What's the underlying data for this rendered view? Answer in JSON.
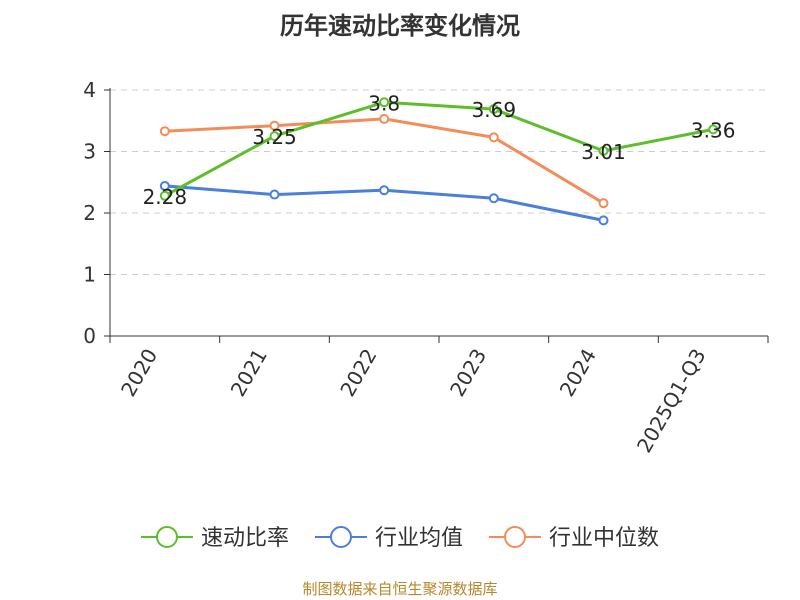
{
  "chart_data": {
    "type": "line",
    "title": "历年速动比率变化情况",
    "categories": [
      "2020",
      "2021",
      "2022",
      "2023",
      "2024",
      "2025Q1-Q3"
    ],
    "ylim": [
      0,
      4
    ],
    "yticks": [
      0,
      1,
      2,
      3,
      4
    ],
    "grid": true,
    "legend_position": "bottom",
    "series": [
      {
        "name": "速动比率",
        "color": "#5cbf2a",
        "values": [
          2.28,
          3.25,
          3.8,
          3.69,
          3.01,
          3.36
        ],
        "labels": [
          "2.28",
          "3.25",
          "3.8",
          "3.69",
          "3.01",
          "3.36"
        ]
      },
      {
        "name": "行业均值",
        "color": "#4a7fdb",
        "values": [
          2.44,
          2.3,
          2.37,
          2.24,
          1.88,
          null
        ]
      },
      {
        "name": "行业中位数",
        "color": "#f48c5a",
        "values": [
          3.33,
          3.42,
          3.53,
          3.23,
          2.16,
          null
        ]
      }
    ]
  },
  "footer": {
    "source": "制图数据来自恒生聚源数据库"
  }
}
